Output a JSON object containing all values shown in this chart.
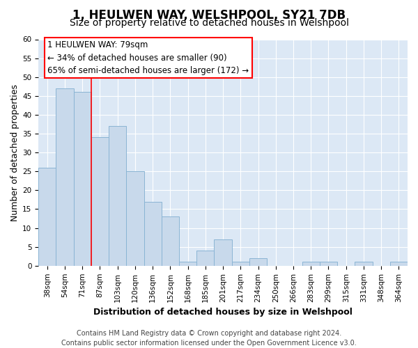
{
  "title": "1, HEULWEN WAY, WELSHPOOL, SY21 7DB",
  "subtitle": "Size of property relative to detached houses in Welshpool",
  "xlabel": "Distribution of detached houses by size in Welshpool",
  "ylabel": "Number of detached properties",
  "bar_color": "#c8d9eb",
  "bar_edge_color": "#8ab4d4",
  "bin_labels": [
    "38sqm",
    "54sqm",
    "71sqm",
    "87sqm",
    "103sqm",
    "120sqm",
    "136sqm",
    "152sqm",
    "168sqm",
    "185sqm",
    "201sqm",
    "217sqm",
    "234sqm",
    "250sqm",
    "266sqm",
    "283sqm",
    "299sqm",
    "315sqm",
    "331sqm",
    "348sqm",
    "364sqm"
  ],
  "bar_heights": [
    26,
    47,
    46,
    34,
    37,
    25,
    17,
    13,
    1,
    4,
    7,
    1,
    2,
    0,
    0,
    1,
    1,
    0,
    1,
    0,
    1
  ],
  "ylim": [
    0,
    60
  ],
  "yticks": [
    0,
    5,
    10,
    15,
    20,
    25,
    30,
    35,
    40,
    45,
    50,
    55,
    60
  ],
  "property_line_x": 2.5,
  "annotation_title": "1 HEULWEN WAY: 79sqm",
  "annotation_line1": "← 34% of detached houses are smaller (90)",
  "annotation_line2": "65% of semi-detached houses are larger (172) →",
  "footer_line1": "Contains HM Land Registry data © Crown copyright and database right 2024.",
  "footer_line2": "Contains public sector information licensed under the Open Government Licence v3.0.",
  "fig_background_color": "#ffffff",
  "plot_background_color": "#dce8f5",
  "grid_color": "#ffffff",
  "title_fontsize": 12,
  "subtitle_fontsize": 10,
  "axis_label_fontsize": 9,
  "tick_fontsize": 7.5,
  "footer_fontsize": 7
}
